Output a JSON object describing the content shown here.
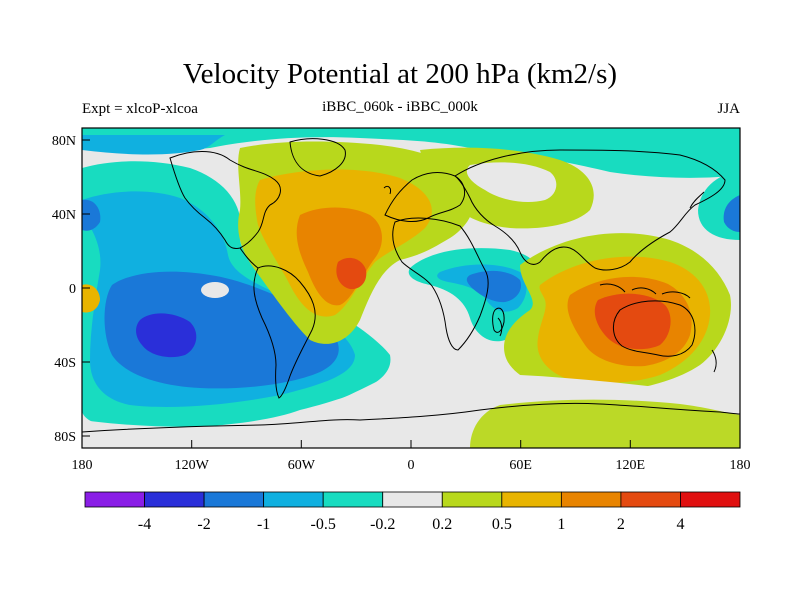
{
  "title": "Velocity Potential at 200 hPa (km2/s)",
  "subtitle_left": "Expt = xlcoP-xlcoa",
  "subtitle_center": "iBBC_060k - iBBC_000k",
  "subtitle_right": "JJA",
  "lat_ticks": [
    "80N",
    "40N",
    "0",
    "40S",
    "80S"
  ],
  "lon_ticks": [
    "180",
    "120W",
    "60W",
    "0",
    "60E",
    "120E",
    "180"
  ],
  "colorbar": {
    "colors": [
      "#8a1ee6",
      "#2a2fd9",
      "#1a78d8",
      "#10b0e0",
      "#18dcc0",
      "#e8e8e8",
      "#b8d81c",
      "#e8b400",
      "#e88400",
      "#e44a10",
      "#e01010"
    ],
    "labels": [
      "-4",
      "-2",
      "-1",
      "-0.5",
      "-0.2",
      "0.2",
      "0.5",
      "1",
      "2",
      "4"
    ]
  }
}
